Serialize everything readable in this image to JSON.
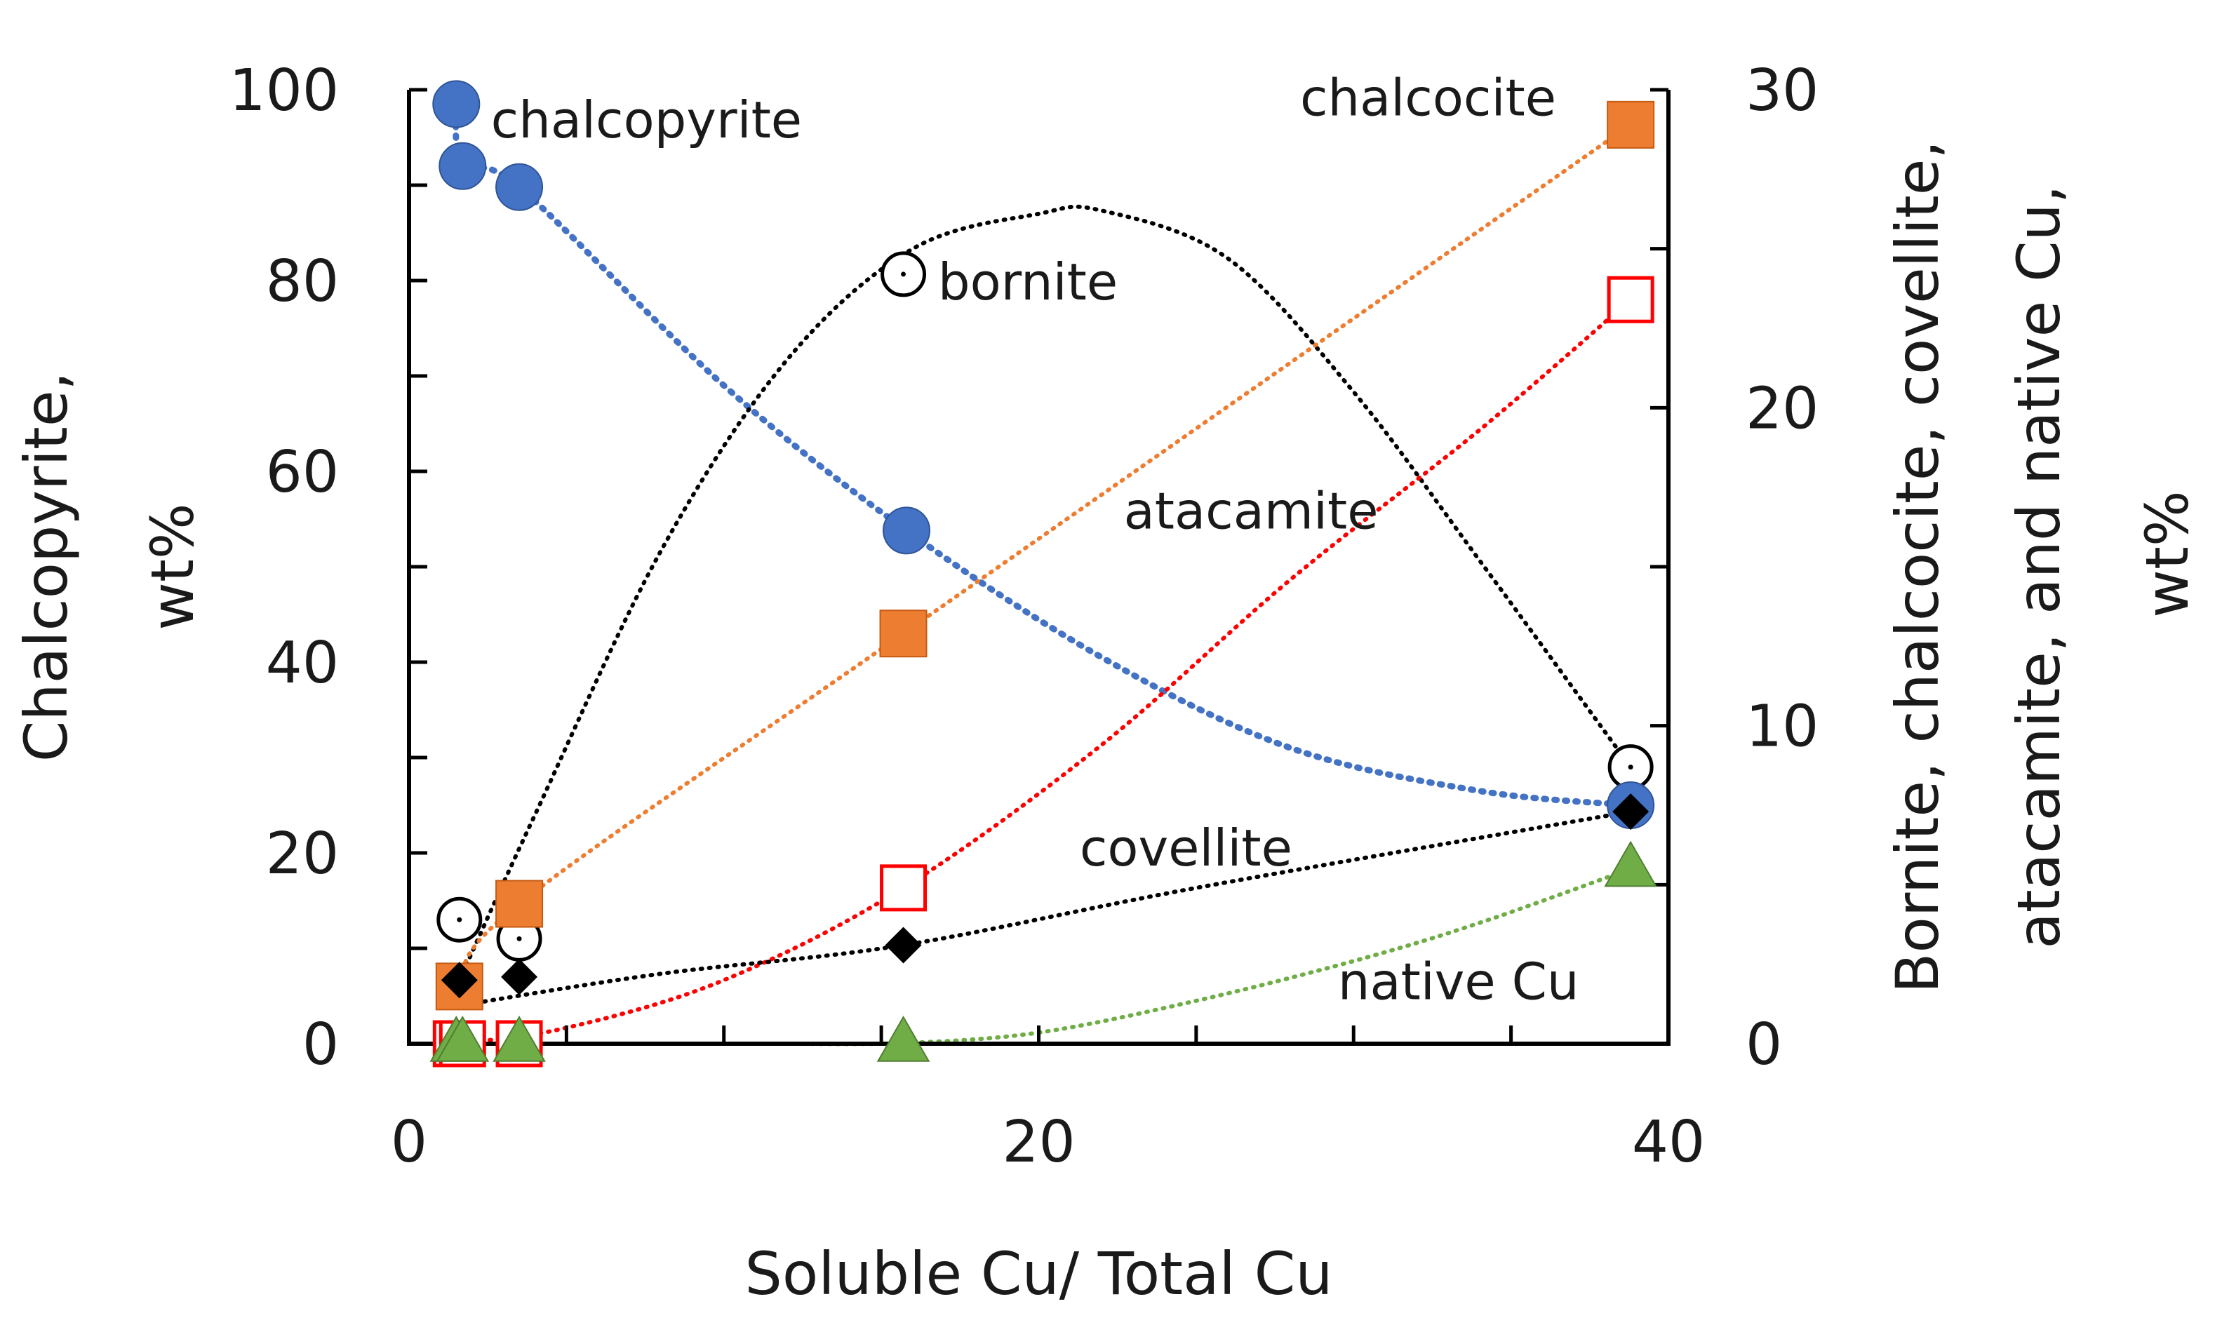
{
  "chart_data": {
    "type": "scatter",
    "x_axis": {
      "label": "Soluble Cu/ Total Cu",
      "range": [
        0,
        40
      ],
      "ticks": [
        0,
        20,
        40
      ],
      "minor_ticks": [
        5,
        10,
        15,
        25,
        30,
        35
      ]
    },
    "y_left": {
      "label_lines": [
        "Chalcopyrite,",
        "wt%"
      ],
      "range": [
        0,
        100
      ],
      "ticks": [
        0,
        20,
        40,
        60,
        80,
        100
      ],
      "minor_ticks": [
        10,
        30,
        50,
        70,
        90
      ]
    },
    "y_right": {
      "label_lines": [
        "Bornite, chalcocite, covellite,",
        "atacamite,  and native Cu,",
        "wt%"
      ],
      "range": [
        0,
        30
      ],
      "ticks": [
        0,
        10,
        20,
        30
      ],
      "minor_ticks": [
        5,
        15,
        25
      ]
    },
    "series": [
      {
        "name": "chalcopyrite",
        "axis": "left",
        "marker": "circle-filled",
        "color": "#4472C4",
        "points": [
          [
            1.5,
            98.5
          ],
          [
            1.7,
            92
          ],
          [
            3.5,
            89.8
          ],
          [
            15.8,
            53.8
          ],
          [
            38.8,
            25
          ]
        ],
        "trend": [
          [
            1.5,
            98.5
          ],
          [
            1.7,
            92
          ],
          [
            3.5,
            89.8
          ],
          [
            10,
            69
          ],
          [
            15.8,
            53.8
          ],
          [
            22,
            40.5
          ],
          [
            28,
            31
          ],
          [
            34,
            26.5
          ],
          [
            38.8,
            25
          ]
        ]
      },
      {
        "name": "bornite",
        "axis": "right",
        "marker": "circle-open",
        "color": "#000000",
        "points": [
          [
            1.6,
            3.9
          ],
          [
            3.5,
            3.3
          ],
          [
            15.7,
            24.2
          ],
          [
            38.8,
            8.7
          ]
        ],
        "trend": [
          [
            1.6,
            2.0
          ],
          [
            4,
            7.2
          ],
          [
            8,
            15.5
          ],
          [
            12,
            21.5
          ],
          [
            16,
            25.0
          ],
          [
            20,
            26.1
          ],
          [
            22,
            26.2
          ],
          [
            26,
            24.7
          ],
          [
            30,
            20.5
          ],
          [
            34,
            15.2
          ],
          [
            38.8,
            8.7
          ]
        ]
      },
      {
        "name": "chalcocite",
        "axis": "right",
        "marker": "square-filled",
        "color": "#ED7D31",
        "points": [
          [
            1.6,
            1.8
          ],
          [
            3.5,
            4.4
          ],
          [
            15.7,
            12.9
          ],
          [
            38.8,
            28.9
          ]
        ],
        "trend": [
          [
            1.6,
            1.8
          ],
          [
            3.5,
            4.4
          ],
          [
            15.7,
            12.9
          ],
          [
            38.8,
            28.9
          ]
        ]
      },
      {
        "name": "atacamite",
        "axis": "right",
        "marker": "square-open",
        "color": "#FF0000",
        "points": [
          [
            1.5,
            0
          ],
          [
            1.7,
            0
          ],
          [
            3.5,
            0
          ],
          [
            15.7,
            4.9
          ],
          [
            38.8,
            23.4
          ]
        ],
        "trend": [
          [
            1.5,
            0
          ],
          [
            5,
            0.5
          ],
          [
            10,
            2.0
          ],
          [
            15.7,
            4.9
          ],
          [
            22,
            9.4
          ],
          [
            28,
            14.6
          ],
          [
            34,
            19.3
          ],
          [
            38.8,
            23.4
          ]
        ]
      },
      {
        "name": "covellite",
        "axis": "right",
        "marker": "diamond-filled",
        "color": "#000000",
        "points": [
          [
            1.6,
            2.0
          ],
          [
            3.5,
            2.1
          ],
          [
            15.7,
            3.1
          ],
          [
            38.8,
            7.3
          ]
        ],
        "trend": [
          [
            1.6,
            1.2
          ],
          [
            8,
            2.2
          ],
          [
            15.7,
            3.1
          ],
          [
            25,
            4.9
          ],
          [
            38.8,
            7.3
          ]
        ]
      },
      {
        "name": "native Cu",
        "axis": "right",
        "marker": "triangle-filled",
        "color": "#70AD47",
        "points": [
          [
            1.5,
            0
          ],
          [
            1.7,
            0
          ],
          [
            3.5,
            0
          ],
          [
            15.7,
            0
          ],
          [
            38.8,
            5.5
          ]
        ],
        "trend": [
          [
            12,
            0
          ],
          [
            15.7,
            0.02
          ],
          [
            20,
            0.35
          ],
          [
            25,
            1.35
          ],
          [
            30,
            2.6
          ],
          [
            34,
            3.8
          ],
          [
            38.8,
            5.5
          ]
        ]
      }
    ],
    "annotations": [
      {
        "text": "chalcopyrite",
        "x": 2.6,
        "axis": "left",
        "y": 95
      },
      {
        "text": "chalcocite",
        "x": 28.3,
        "axis": "right",
        "y": 29.2
      },
      {
        "text": "bornite",
        "x": 16.8,
        "axis": "right",
        "y": 23.4
      },
      {
        "text": "atacamite",
        "x": 22.7,
        "axis": "right",
        "y": 16.2
      },
      {
        "text": "covellite",
        "x": 21.3,
        "axis": "right",
        "y": 5.6
      },
      {
        "text": "native Cu",
        "x": 29.5,
        "axis": "right",
        "y": 1.4
      }
    ]
  }
}
